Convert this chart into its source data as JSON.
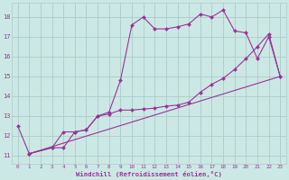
{
  "xlabel": "Windchill (Refroidissement éolien,°C)",
  "background_color": "#cce8e4",
  "grid_color": "#aaccca",
  "line_color": "#993399",
  "xlim": [
    -0.5,
    23.5
  ],
  "ylim": [
    10.6,
    18.7
  ],
  "yticks": [
    11,
    12,
    13,
    14,
    15,
    16,
    17,
    18
  ],
  "xticks": [
    0,
    1,
    2,
    3,
    4,
    5,
    6,
    7,
    8,
    9,
    10,
    11,
    12,
    13,
    14,
    15,
    16,
    17,
    18,
    19,
    20,
    21,
    22,
    23
  ],
  "line1_x": [
    0,
    1,
    3,
    4,
    5,
    6,
    7,
    8,
    9,
    10,
    11,
    12,
    13,
    14,
    15,
    16,
    17,
    18,
    19,
    20,
    21,
    22,
    23
  ],
  "line1_y": [
    12.5,
    11.1,
    11.4,
    11.4,
    12.2,
    12.3,
    13.0,
    13.2,
    14.8,
    17.6,
    18.0,
    17.4,
    17.4,
    17.5,
    17.65,
    18.15,
    18.0,
    18.35,
    17.3,
    17.2,
    15.9,
    17.0,
    15.0
  ],
  "line2_x": [
    1,
    3,
    4,
    5,
    6,
    7,
    8,
    9,
    10,
    11,
    12,
    13,
    14,
    15,
    16,
    17,
    18,
    19,
    20,
    21,
    22,
    23
  ],
  "line2_y": [
    11.1,
    11.4,
    12.2,
    12.2,
    12.3,
    13.0,
    13.1,
    13.3,
    13.3,
    13.35,
    13.4,
    13.5,
    13.55,
    13.7,
    14.2,
    14.6,
    14.9,
    15.35,
    15.9,
    16.5,
    17.15,
    15.0
  ],
  "line3_x": [
    1,
    23
  ],
  "line3_y": [
    11.1,
    15.0
  ]
}
